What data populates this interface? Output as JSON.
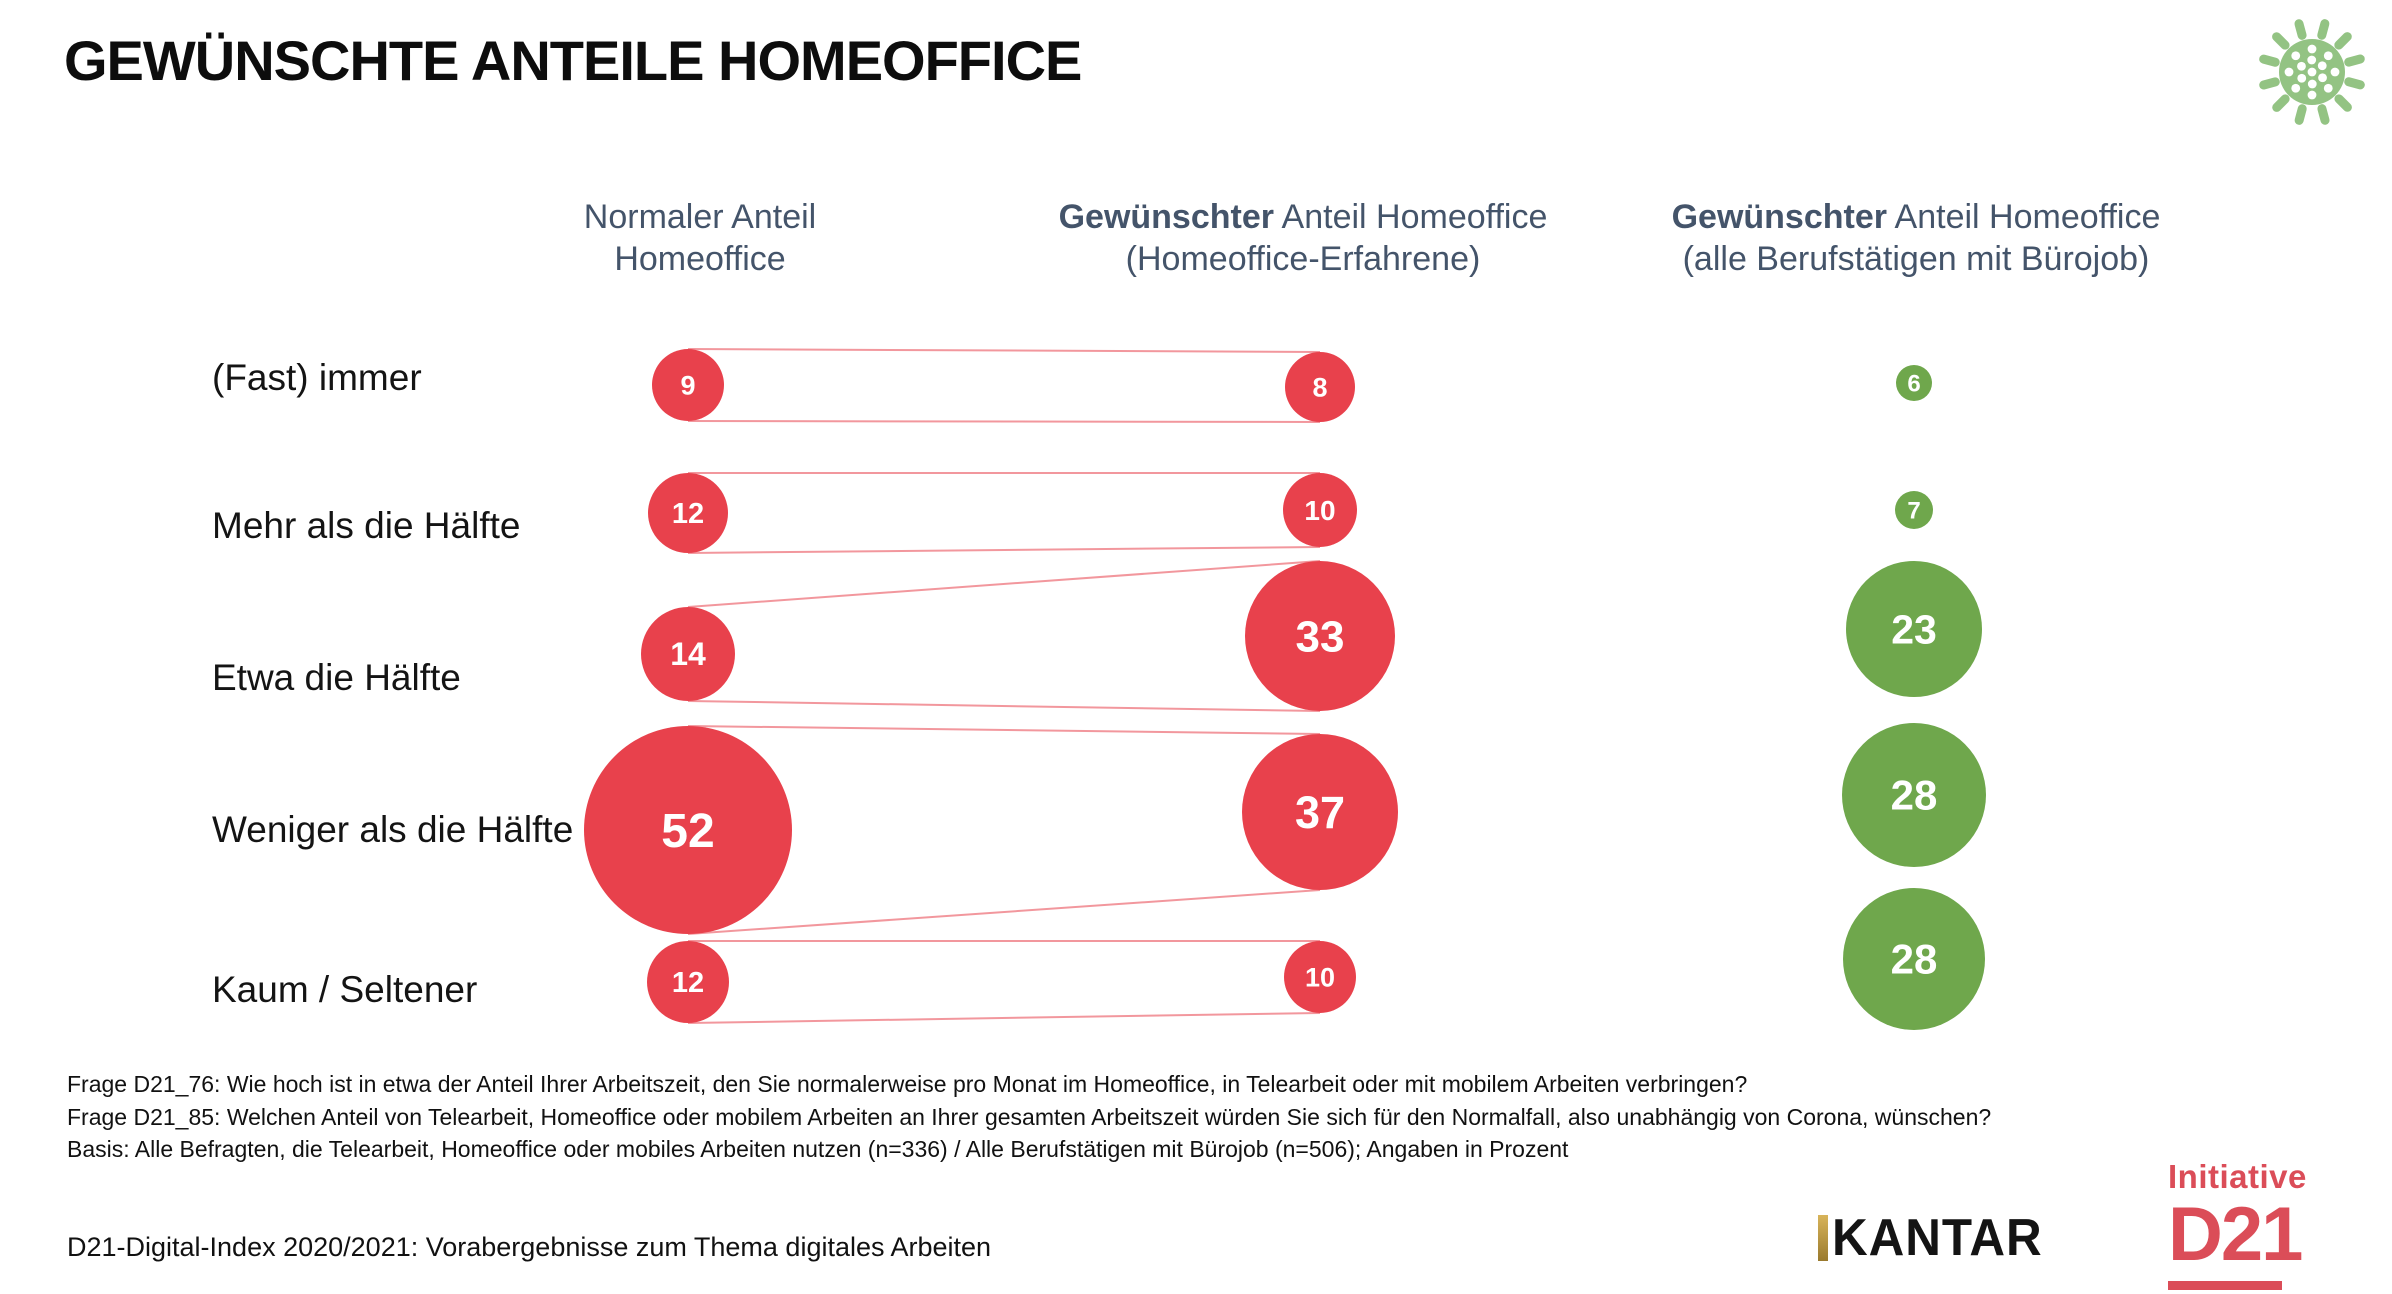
{
  "title": "GEWÜNSCHTE ANTEILE HOMEOFFICE",
  "columns": [
    {
      "heading_bold": "",
      "heading_rest": "Normaler Anteil",
      "heading_line2": "Homeoffice"
    },
    {
      "heading_bold": "Gewünschter",
      "heading_rest": " Anteil Homeoffice",
      "heading_line2": "(Homeoffice-Erfahrene)"
    },
    {
      "heading_bold": "Gewünschter",
      "heading_rest": " Anteil Homeoffice",
      "heading_line2": "(alle Berufstätigen mit Bürojob)"
    }
  ],
  "chart_data": {
    "type": "bubble",
    "unit": "Angaben in Prozent",
    "categories": [
      "(Fast) immer",
      "Mehr als die Hälfte",
      "Etwa die Hälfte",
      "Weniger als die Hälfte",
      "Kaum / Seltener"
    ],
    "series": [
      {
        "name": "Normaler Anteil Homeoffice",
        "color": "#E8414C",
        "values": [
          9,
          12,
          14,
          52,
          12
        ]
      },
      {
        "name": "Gewünschter Anteil Homeoffice (Homeoffice-Erfahrene)",
        "color": "#E8414C",
        "values": [
          8,
          10,
          33,
          37,
          10
        ]
      },
      {
        "name": "Gewünschter Anteil Homeoffice (alle Berufstätigen mit Bürojob)",
        "color": "#6FA74C",
        "values": [
          6,
          7,
          23,
          28,
          28
        ]
      }
    ],
    "connectors_between": [
      0,
      1
    ],
    "legend_position": "none",
    "grid": false
  },
  "footnotes": [
    "Frage D21_76: Wie hoch ist in etwa der Anteil Ihrer Arbeitszeit, den Sie normalerweise pro Monat im Homeoffice, in Telearbeit oder mit mobilem Arbeiten verbringen?",
    "Frage D21_85: Welchen Anteil von Telearbeit, Homeoffice oder mobilem Arbeiten an Ihrer gesamten Arbeitszeit würden Sie sich für den Normalfall, also unabhängig von Corona, wünschen?",
    "Basis: Alle Befragten, die Telearbeit, Homeoffice oder mobiles Arbeiten nutzen (n=336) / Alle Berufstätigen mit Bürojob (n=506); Angaben in Prozent"
  ],
  "caption": "D21-Digital-Index 2020/2021: Vorabergebnisse zum Thema digitales Arbeiten",
  "logos": {
    "kantar": "KANTAR",
    "d21_line1": "Initiative",
    "d21_line2": "D21"
  },
  "colors": {
    "bubble_red": "#E8414C",
    "bubble_green": "#6FA74C",
    "heading_text": "#44546A",
    "connector_line": "#E8414C",
    "virus_icon": "#93C383",
    "kantar_gold": "#BE9B44",
    "d21_red": "#DB4D58"
  }
}
